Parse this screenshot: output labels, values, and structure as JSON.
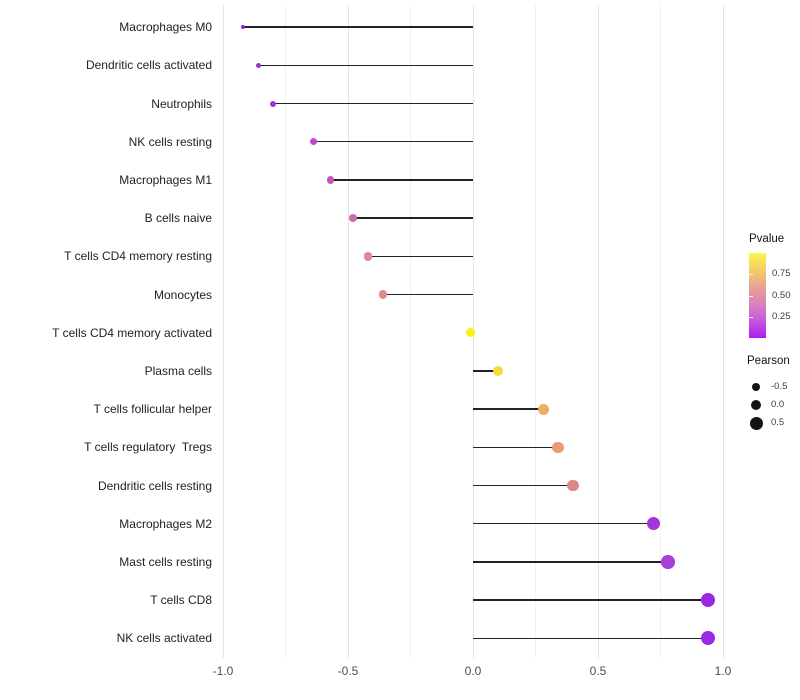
{
  "chart_data": {
    "type": "scatter",
    "variant": "lollipop-horizontal",
    "title": "",
    "xlabel": "",
    "ylabel": "",
    "xlim": [
      -1.15,
      1.06
    ],
    "x_tick_values": [
      -1.0,
      -0.5,
      0.0,
      0.5,
      1.0
    ],
    "x_tick_labels": [
      "-1.0",
      "-0.5",
      "0.0",
      "0.5",
      "1.0"
    ],
    "x_minor_step": 0.25,
    "grid": "vertical-only",
    "legend_position": "right",
    "points": [
      {
        "label": "Macrophages M0",
        "pearson": -0.92,
        "color": "#9326d8",
        "diameter": 4.2
      },
      {
        "label": "Dendritic cells activated",
        "pearson": -0.86,
        "color": "#9c2bdb",
        "diameter": 5.0
      },
      {
        "label": "Neutrophils",
        "pearson": -0.8,
        "color": "#a232dc",
        "diameter": 6.0
      },
      {
        "label": "NK cells resting",
        "pearson": -0.64,
        "color": "#ba4ac8",
        "diameter": 7.0
      },
      {
        "label": "Macrophages M1",
        "pearson": -0.57,
        "color": "#c357be",
        "diameter": 7.5
      },
      {
        "label": "B cells naive",
        "pearson": -0.48,
        "color": "#d16bb0",
        "diameter": 8.0
      },
      {
        "label": "T cells CD4 memory resting",
        "pearson": -0.42,
        "color": "#e0868f",
        "diameter": 8.5
      },
      {
        "label": "Monocytes",
        "pearson": -0.36,
        "color": "#e38b8b",
        "diameter": 8.8
      },
      {
        "label": "T cells CD4 memory activated",
        "pearson": -0.01,
        "color": "#f4f407",
        "diameter": 9.5
      },
      {
        "label": "Plasma cells",
        "pearson": 0.1,
        "color": "#f2dc3f",
        "diameter": 10.2
      },
      {
        "label": "T cells follicular helper",
        "pearson": 0.28,
        "color": "#edac60",
        "diameter": 11.0
      },
      {
        "label": "T cells regulatory  Tregs",
        "pearson": 0.34,
        "color": "#e89b74",
        "diameter": 11.3
      },
      {
        "label": "Dendritic cells resting",
        "pearson": 0.4,
        "color": "#dd8687",
        "diameter": 11.6
      },
      {
        "label": "Macrophages M2",
        "pearson": 0.72,
        "color": "#a236da",
        "diameter": 13.0
      },
      {
        "label": "Mast cells resting",
        "pearson": 0.78,
        "color": "#a83fda",
        "diameter": 13.4
      },
      {
        "label": "T cells CD8",
        "pearson": 0.94,
        "color": "#9929e2",
        "diameter": 14.4
      },
      {
        "label": "NK cells activated",
        "pearson": 0.94,
        "color": "#9929e2",
        "diameter": 14.4
      }
    ]
  },
  "legends": {
    "pvalue": {
      "title": "Pvalue",
      "tick_labels": [
        "0.75",
        "0.50",
        "0.25"
      ],
      "tick_values": [
        0.75,
        0.5,
        0.25
      ],
      "range": [
        0.0,
        1.0
      ],
      "gradient_top_to_bottom": [
        "#faf64b",
        "#f3ce63",
        "#e8a292",
        "#d983bc",
        "#c558e0",
        "#ae1aee"
      ]
    },
    "pearson": {
      "title": "Pearson",
      "dot_color": "#141414",
      "items": [
        {
          "label": "-0.5",
          "value": -0.5,
          "diameter": 8.0
        },
        {
          "label": "0.0",
          "value": 0.0,
          "diameter": 10.5
        },
        {
          "label": "0.5",
          "value": 0.5,
          "diameter": 13.0
        }
      ]
    }
  }
}
